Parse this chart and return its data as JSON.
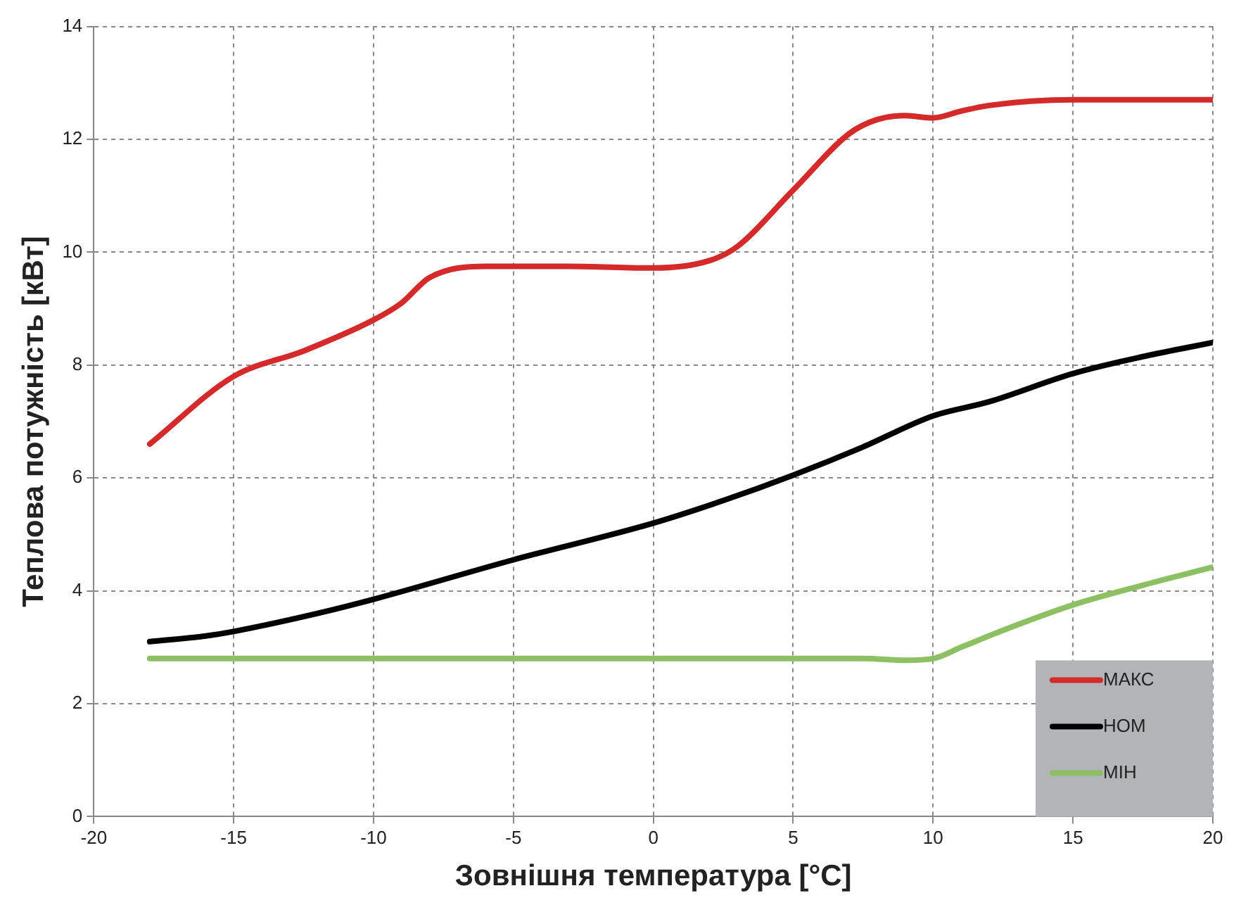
{
  "chart_data": {
    "type": "line",
    "xlabel": "Зовнішня температура [°C]",
    "ylabel": "Теплова потужність [кВт]",
    "xlim": [
      -20,
      20
    ],
    "xticks": [
      -20,
      -15,
      -10,
      -5,
      0,
      5,
      10,
      15,
      20
    ],
    "ylim": [
      0,
      14
    ],
    "yticks": [
      0,
      2,
      4,
      6,
      8,
      10,
      12,
      14
    ],
    "grid": true,
    "legend": "bottom right",
    "marker": "none",
    "line_style": "solid",
    "series": [
      {
        "name": "МАКС",
        "color": "#d42a2a",
        "x": [
          -18,
          -15,
          -12.5,
          -10,
          -9,
          -8,
          -6,
          -3,
          0,
          2,
          3,
          5,
          7,
          8,
          9,
          10,
          11,
          12,
          15,
          20
        ],
        "values": [
          6.6,
          7.8,
          8.25,
          8.8,
          9.1,
          9.55,
          9.75,
          9.75,
          9.72,
          9.85,
          10.1,
          11.1,
          12.1,
          12.35,
          12.42,
          12.38,
          12.5,
          12.6,
          12.7,
          12.7
        ]
      },
      {
        "name": "НОМ",
        "color": "#000000",
        "x": [
          -18,
          -16,
          -15,
          -12,
          -10,
          -5,
          0,
          2.5,
          5,
          7.5,
          10,
          12,
          15,
          17.5,
          20
        ],
        "values": [
          3.1,
          3.2,
          3.28,
          3.6,
          3.85,
          4.55,
          5.2,
          5.6,
          6.05,
          6.55,
          7.1,
          7.35,
          7.85,
          8.15,
          8.4
        ]
      },
      {
        "name": "МІН",
        "color": "#8cc063",
        "x": [
          -18,
          7.5,
          9,
          10,
          11,
          12.5,
          15,
          17.5,
          20
        ],
        "values": [
          2.8,
          2.8,
          2.77,
          2.8,
          3.0,
          3.3,
          3.75,
          4.1,
          4.42
        ]
      }
    ]
  }
}
